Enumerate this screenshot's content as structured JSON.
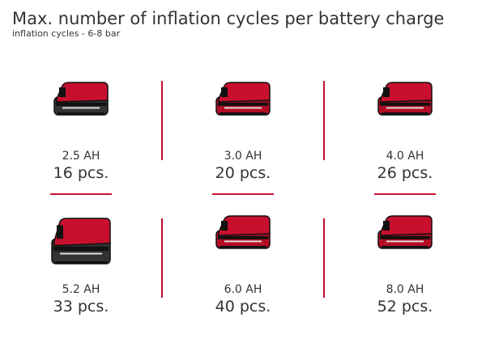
{
  "header": {
    "title": "Max. number of inflation cycles per battery charge",
    "subtitle": "inflation cycles - 6-8 bar"
  },
  "items": [
    {
      "capacity": "2.5 AH",
      "count": "16 pcs."
    },
    {
      "capacity": "3.0 AH",
      "count": "20 pcs."
    },
    {
      "capacity": "4.0 AH",
      "count": "26 pcs."
    },
    {
      "capacity": "5.2 AH",
      "count": "33 pcs."
    },
    {
      "capacity": "6.0 AH",
      "count": "40 pcs."
    },
    {
      "capacity": "8.0 AH",
      "count": "52 pcs."
    }
  ]
}
